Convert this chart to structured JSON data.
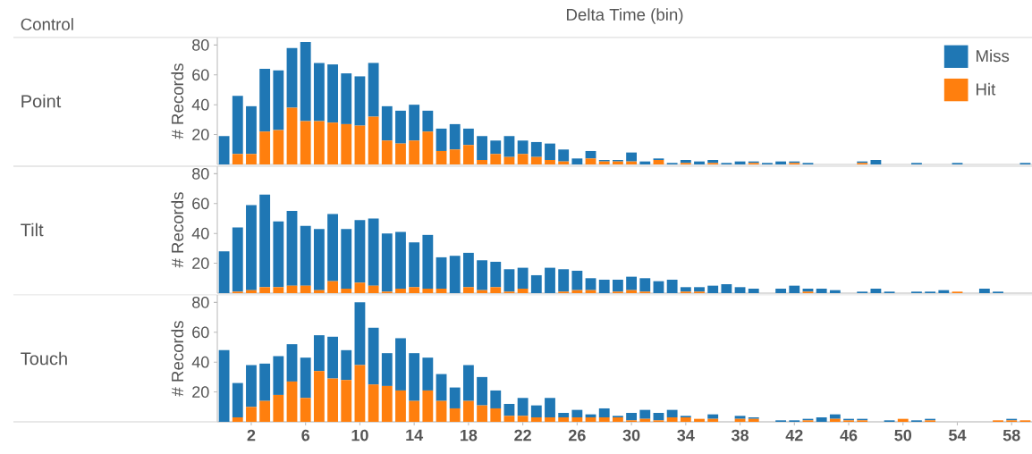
{
  "chart_data": [
    {
      "type": "bar",
      "stacked": true,
      "xlabel": "Delta Time (bin)",
      "ylabel": "# Records",
      "annotations": [
        "Control",
        "Point"
      ],
      "x": [
        0,
        1,
        2,
        3,
        4,
        5,
        6,
        7,
        8,
        9,
        10,
        11,
        12,
        13,
        14,
        15,
        16,
        17,
        18,
        19,
        20,
        21,
        22,
        23,
        24,
        25,
        26,
        27,
        28,
        29,
        30,
        31,
        32,
        33,
        34,
        35,
        36,
        37,
        38,
        39,
        40,
        41,
        42,
        43,
        44,
        45,
        46,
        47,
        48,
        49,
        50,
        51,
        52,
        53,
        54,
        55,
        56,
        57,
        58,
        59
      ],
      "series": [
        {
          "name": "Hit",
          "color": "#ff7f0e",
          "values": [
            0,
            7,
            7,
            22,
            23,
            38,
            29,
            29,
            28,
            27,
            26,
            32,
            16,
            14,
            16,
            22,
            9,
            10,
            13,
            3,
            7,
            5,
            7,
            5,
            3,
            2,
            0,
            4,
            2,
            2,
            2,
            0,
            3,
            0,
            1,
            0,
            1,
            0,
            0,
            1,
            0,
            0,
            1,
            0,
            0,
            0,
            0,
            1,
            0,
            0,
            0,
            0,
            0,
            0,
            0,
            0,
            0,
            0,
            0,
            0
          ]
        },
        {
          "name": "Miss",
          "color": "#1f77b4",
          "values": [
            19,
            39,
            32,
            42,
            40,
            40,
            53,
            39,
            39,
            34,
            33,
            36,
            23,
            22,
            24,
            14,
            15,
            17,
            11,
            16,
            9,
            14,
            9,
            10,
            11,
            8,
            4,
            5,
            1,
            1,
            6,
            2,
            1,
            1,
            2,
            2,
            2,
            1,
            2,
            1,
            1,
            2,
            1,
            1,
            0,
            0,
            0,
            1,
            3,
            0,
            0,
            1,
            0,
            0,
            1,
            0,
            0,
            0,
            0,
            1
          ]
        }
      ],
      "xlim": [
        -0.5,
        59.5
      ],
      "ylim": [
        0,
        85
      ],
      "yticks": [
        20,
        40,
        60,
        80
      ],
      "tick_labels": "y",
      "legend": "top right"
    },
    {
      "type": "bar",
      "stacked": true,
      "ylabel": "# Records",
      "annotations": [
        "Tilt"
      ],
      "x": [
        0,
        1,
        2,
        3,
        4,
        5,
        6,
        7,
        8,
        9,
        10,
        11,
        12,
        13,
        14,
        15,
        16,
        17,
        18,
        19,
        20,
        21,
        22,
        23,
        24,
        25,
        26,
        27,
        28,
        29,
        30,
        31,
        32,
        33,
        34,
        35,
        36,
        37,
        38,
        39,
        40,
        41,
        42,
        43,
        44,
        45,
        46,
        47,
        48,
        49,
        50,
        51,
        52,
        53,
        54,
        55,
        56,
        57,
        58,
        59
      ],
      "series": [
        {
          "color": "#ff7f0e",
          "values": [
            0,
            1,
            2,
            4,
            4,
            5,
            5,
            2,
            8,
            3,
            7,
            5,
            1,
            3,
            4,
            3,
            3,
            0,
            4,
            2,
            4,
            1,
            3,
            0,
            0,
            1,
            2,
            2,
            0,
            1,
            2,
            1,
            0,
            0,
            1,
            1,
            0,
            0,
            0,
            0,
            0,
            0,
            0,
            1,
            0,
            0,
            0,
            0,
            0,
            0,
            0,
            0,
            0,
            0,
            1,
            0,
            0,
            0,
            0,
            0
          ]
        },
        {
          "color": "#1f77b4",
          "values": [
            28,
            43,
            57,
            62,
            44,
            50,
            40,
            41,
            45,
            40,
            42,
            45,
            39,
            38,
            30,
            36,
            21,
            25,
            23,
            20,
            17,
            15,
            14,
            12,
            17,
            15,
            13,
            8,
            9,
            8,
            9,
            9,
            8,
            9,
            3,
            3,
            5,
            6,
            4,
            3,
            0,
            3,
            5,
            2,
            3,
            2,
            0,
            1,
            3,
            1,
            0,
            1,
            1,
            2,
            0,
            0,
            3,
            1,
            0,
            0
          ]
        }
      ],
      "xlim": [
        -0.5,
        59.5
      ],
      "ylim": [
        0,
        85
      ],
      "yticks": [
        20,
        40,
        60,
        80
      ],
      "tick_labels": "y"
    },
    {
      "type": "bar",
      "stacked": true,
      "ylabel": "# Records",
      "annotations": [
        "Touch"
      ],
      "x": [
        0,
        1,
        2,
        3,
        4,
        5,
        6,
        7,
        8,
        9,
        10,
        11,
        12,
        13,
        14,
        15,
        16,
        17,
        18,
        19,
        20,
        21,
        22,
        23,
        24,
        25,
        26,
        27,
        28,
        29,
        30,
        31,
        32,
        33,
        34,
        35,
        36,
        37,
        38,
        39,
        40,
        41,
        42,
        43,
        44,
        45,
        46,
        47,
        48,
        49,
        50,
        51,
        52,
        53,
        54,
        55,
        56,
        57,
        58,
        59
      ],
      "series": [
        {
          "color": "#ff7f0e",
          "values": [
            0,
            3,
            10,
            14,
            18,
            27,
            16,
            34,
            29,
            28,
            38,
            25,
            24,
            21,
            14,
            21,
            14,
            9,
            14,
            11,
            9,
            4,
            4,
            3,
            3,
            3,
            3,
            3,
            3,
            3,
            1,
            2,
            1,
            3,
            3,
            2,
            2,
            0,
            2,
            2,
            0,
            0,
            0,
            1,
            0,
            2,
            1,
            1,
            0,
            0,
            2,
            0,
            1,
            0,
            0,
            0,
            0,
            1,
            1,
            1
          ]
        },
        {
          "color": "#1f77b4",
          "values": [
            48,
            23,
            28,
            25,
            26,
            25,
            27,
            24,
            28,
            20,
            42,
            38,
            22,
            35,
            32,
            22,
            18,
            14,
            24,
            19,
            12,
            8,
            12,
            8,
            13,
            3,
            5,
            2,
            6,
            1,
            5,
            6,
            5,
            5,
            1,
            0,
            3,
            0,
            2,
            1,
            0,
            1,
            1,
            1,
            3,
            3,
            1,
            1,
            0,
            1,
            0,
            1,
            1,
            0,
            0,
            0,
            0,
            0,
            1,
            0
          ]
        }
      ],
      "xlim": [
        -0.5,
        59.5
      ],
      "ylim": [
        0,
        85
      ],
      "xticks": [
        2,
        6,
        10,
        14,
        18,
        22,
        26,
        30,
        34,
        38,
        42,
        46,
        50,
        54,
        58
      ],
      "yticks": [
        20,
        40,
        60,
        80
      ]
    }
  ]
}
